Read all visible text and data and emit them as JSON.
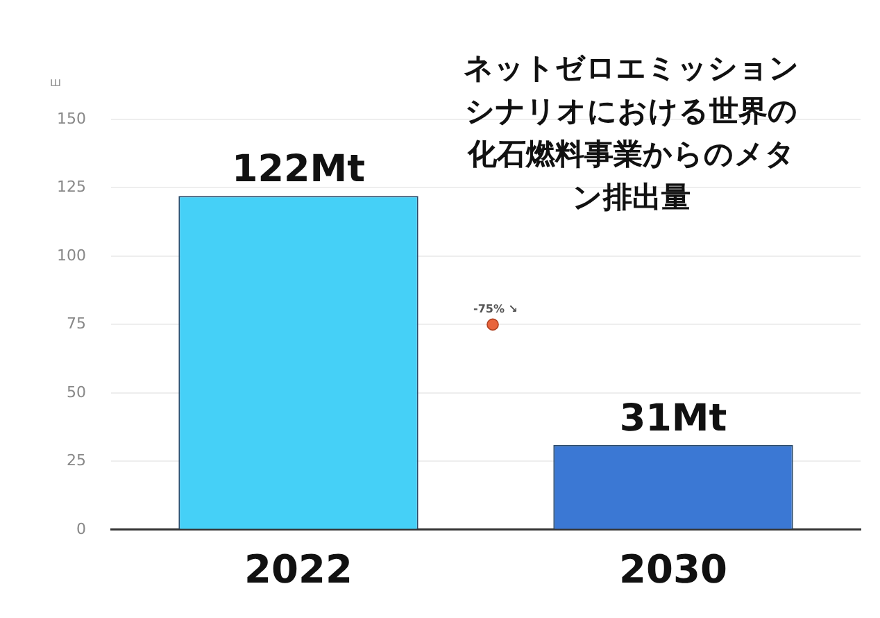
{
  "chart_data": {
    "type": "bar",
    "title": "ネットゼロエミッションシナリオにおける世界の化石燃料事業からのメタン排出量",
    "ylabel": "ш",
    "categories": [
      "2022",
      "2030"
    ],
    "values": [
      122,
      31
    ],
    "colors": [
      "#45d0f7",
      "#3b78d4"
    ],
    "value_labels": [
      "122Mt",
      "31Mt"
    ],
    "annotations": [
      {
        "text": "-75% ↘",
        "y": 75
      }
    ],
    "ylim": [
      0,
      150
    ],
    "yticks": [
      0,
      25,
      50,
      75,
      100,
      125,
      150
    ],
    "grid": "y",
    "legend": false
  }
}
